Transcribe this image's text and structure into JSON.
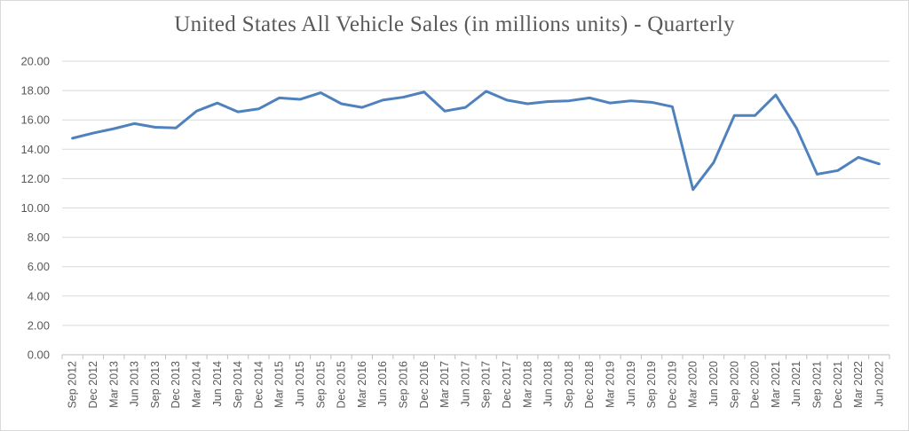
{
  "chart_data": {
    "type": "line",
    "title": "United States All Vehicle Sales (in millions units) - Quarterly",
    "xlabel": "",
    "ylabel": "",
    "ylim": [
      0,
      20
    ],
    "yticks": [
      "0.00",
      "2.00",
      "4.00",
      "6.00",
      "8.00",
      "10.00",
      "12.00",
      "14.00",
      "16.00",
      "18.00",
      "20.00"
    ],
    "grid": true,
    "legend": "none",
    "colors": {
      "line": "#4f81bd",
      "grid": "#d9d9d9",
      "axis": "#bfbfbf",
      "text": "#595959"
    },
    "categories": [
      "Sep 2012",
      "Dec 2012",
      "Mar 2013",
      "Jun 2013",
      "Sep 2013",
      "Dec 2013",
      "Mar 2014",
      "Jun 2014",
      "Sep 2014",
      "Dec 2014",
      "Mar 2015",
      "Jun 2015",
      "Sep 2015",
      "Dec 2015",
      "Mar 2016",
      "Jun 2016",
      "Sep 2016",
      "Dec 2016",
      "Mar 2017",
      "Jun 2017",
      "Sep 2017",
      "Dec 2017",
      "Mar 2018",
      "Jun 2018",
      "Sep 2018",
      "Dec 2018",
      "Mar 2019",
      "Jun 2019",
      "Sep 2019",
      "Dec 2019",
      "Mar 2020",
      "Jun 2020",
      "Sep 2020",
      "Dec 2020",
      "Mar 2021",
      "Jun 2021",
      "Sep 2021",
      "Dec 2021",
      "Mar 2022",
      "Jun 2022"
    ],
    "series": [
      {
        "values": [
          14.75,
          15.1,
          15.4,
          15.75,
          15.5,
          15.45,
          16.6,
          17.15,
          16.55,
          16.75,
          17.5,
          17.4,
          17.85,
          17.1,
          16.85,
          17.35,
          17.55,
          17.9,
          16.6,
          16.85,
          17.95,
          17.35,
          17.1,
          17.25,
          17.3,
          17.5,
          17.15,
          17.3,
          17.2,
          16.9,
          11.25,
          13.1,
          16.3,
          16.3,
          17.7,
          15.45,
          12.3,
          12.55,
          13.45,
          13.0
        ]
      }
    ]
  }
}
